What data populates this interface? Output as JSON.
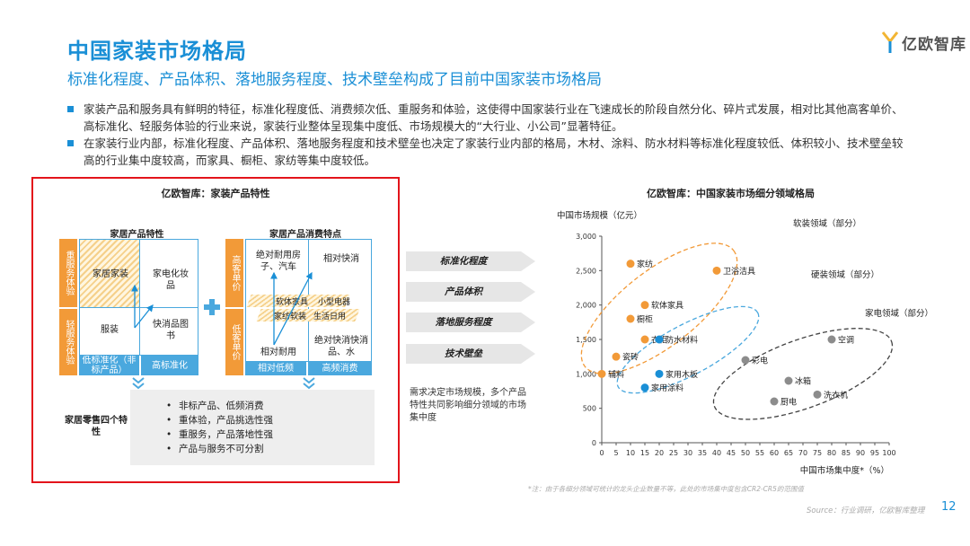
{
  "header": {
    "title": "中国家装市场格局",
    "subtitle": "标准化程度、产品体积、落地服务程度、技术壁垒构成了目前中国家装市场格局",
    "logo_text": "亿欧智库"
  },
  "bullets": [
    "家装产品和服务具有鲜明的特征，标准化程度低、消费频次低、重服务和体验，这使得中国家装行业在飞速成长的阶段自然分化、碎片式发展，相对比其他高客单价、高标准化、轻服务体验的行业来说，家装行业整体呈现集中度低、市场规模大的“大行业、小公司”显著特征。",
    "在家装行业内部，标准化程度、产品体积、落地服务程度和技术壁垒也决定了家装行业内部的格局，木材、涂料、防水材料等标准化程度较低、体积较小、技术壁垒较高的行业集中度较高，而家具、橱柜、家纺等集中度较低。"
  ],
  "left_panel": {
    "title": "亿欧智库：家装产品特性",
    "product_char": {
      "title": "家居产品特性",
      "left_top": "重服务体验",
      "left_bottom": "轻服务体验",
      "bottom_left": "低标准化（非标产品）",
      "bottom_right": "高标准化",
      "tl": "家居家装",
      "tr": "家电化妆品",
      "bl": "服装",
      "br": "快消品图书"
    },
    "consume_char": {
      "title": "家居产品消费特点",
      "left_top": "高客单价",
      "left_bottom": "低客单价",
      "bottom_left": "相对低频",
      "bottom_right": "高频消费",
      "tl": "绝对耐用房子、汽车",
      "tr": "相对快消",
      "mid_a": "软体家具",
      "mid_b": "小型电器",
      "mid_c": "家纺软装",
      "mid_d": "生活日用",
      "bl": "相对耐用",
      "br": "绝对快消快消品、水"
    },
    "four_char_label": "家居零售四个特性",
    "four_char": [
      "非标产品、低频消费",
      "重体验，产品挑选性强",
      "重服务，产品落地性强",
      "产品与服务不可分割"
    ]
  },
  "middle": {
    "arrows": [
      "标准化程度",
      "产品体积",
      "落地服务程度",
      "技术壁垒"
    ],
    "note": "需求决定市场规模，多个产品特性共同影响细分领域的市场集中度"
  },
  "chart_data": {
    "type": "scatter",
    "title": "亿欧智库：中国家装市场细分领域格局",
    "ylabel": "中国市场规模（亿元）",
    "xlabel": "中国市场集中度*（%）",
    "xlim": [
      0,
      100
    ],
    "ylim": [
      0,
      3000
    ],
    "xticks": [
      0,
      5,
      10,
      15,
      20,
      25,
      30,
      35,
      40,
      45,
      50,
      55,
      60,
      65,
      70,
      75,
      80,
      85,
      90,
      95,
      100
    ],
    "yticks": [
      0,
      500,
      1000,
      1500,
      2000,
      2500,
      3000
    ],
    "yticklabels": [
      "0",
      "500",
      "1,000",
      "1,500",
      "2,000",
      "2,500",
      "3,000"
    ],
    "points": [
      {
        "label": "家纺",
        "x": 10,
        "y": 2600,
        "color": "#f29a38"
      },
      {
        "label": "卫浴洁具",
        "x": 40,
        "y": 2500,
        "color": "#f29a38"
      },
      {
        "label": "软体家具",
        "x": 15,
        "y": 2000,
        "color": "#f29a38"
      },
      {
        "label": "橱柜",
        "x": 10,
        "y": 1800,
        "color": "#f29a38"
      },
      {
        "label": "衣柜",
        "x": 15,
        "y": 1500,
        "color": "#f29a38"
      },
      {
        "label": "防水材料",
        "x": 20,
        "y": 1500,
        "color": "#1a8fd6"
      },
      {
        "label": "瓷砖",
        "x": 5,
        "y": 1250,
        "color": "#f29a38"
      },
      {
        "label": "辅料",
        "x": 0,
        "y": 1000,
        "color": "#f29a38"
      },
      {
        "label": "家用木板",
        "x": 20,
        "y": 1000,
        "color": "#1a8fd6"
      },
      {
        "label": "家用涂料",
        "x": 15,
        "y": 800,
        "color": "#1a8fd6"
      },
      {
        "label": "空调",
        "x": 80,
        "y": 1500,
        "color": "#8c8c8c"
      },
      {
        "label": "彩电",
        "x": 50,
        "y": 1200,
        "color": "#8c8c8c"
      },
      {
        "label": "冰箱",
        "x": 65,
        "y": 900,
        "color": "#8c8c8c"
      },
      {
        "label": "洗衣机",
        "x": 75,
        "y": 700,
        "color": "#8c8c8c"
      },
      {
        "label": "厨电",
        "x": 60,
        "y": 600,
        "color": "#8c8c8c"
      }
    ],
    "groups": [
      {
        "label": "软装领域（部分）",
        "color": "#f29a38"
      },
      {
        "label": "硬装领域（部分）",
        "color": "#4aa8de"
      },
      {
        "label": "家电领域（部分）",
        "color": "#444444"
      }
    ],
    "footnote": "*注：由于各细分领域可统计的龙头企业数量不等，此处的市场集中度包含CR2-CR5的范围值"
  },
  "footer": {
    "source": "Source：行业调研，亿欧智库整理",
    "page": "12"
  },
  "colors": {
    "brand": "#1a8fd6",
    "orange": "#f29a38",
    "blue": "#4aa8de",
    "red_frame": "#e3141b"
  }
}
